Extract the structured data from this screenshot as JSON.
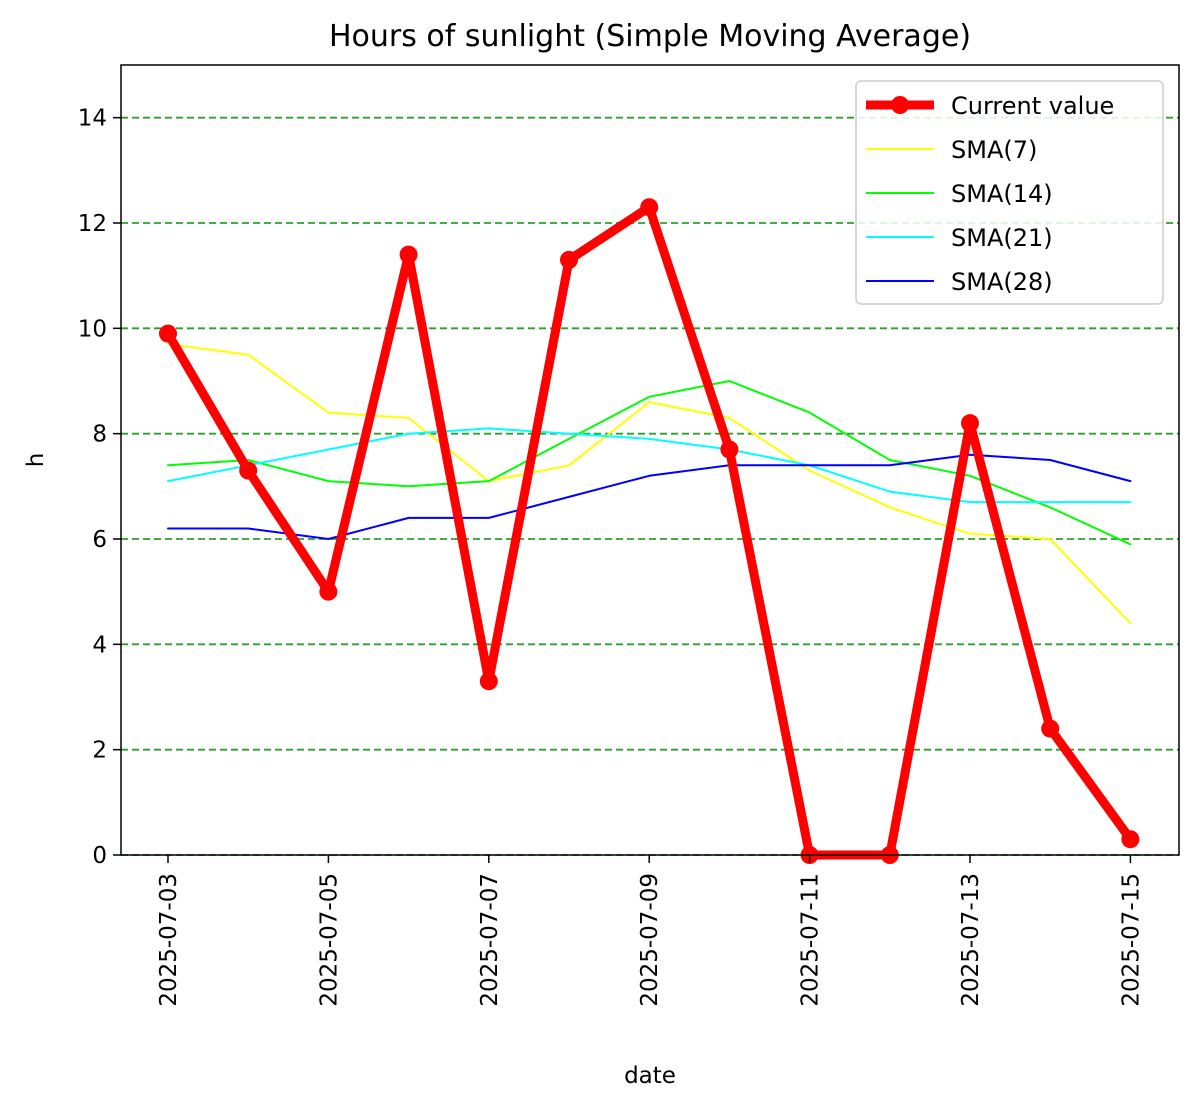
{
  "chart_data": {
    "type": "line",
    "title": "Hours of sunlight (Simple Moving Average)",
    "xlabel": "date",
    "ylabel": "h",
    "ylim": [
      0,
      15
    ],
    "yticks": [
      0,
      2,
      4,
      6,
      8,
      10,
      12,
      14
    ],
    "x": [
      "2025-07-03",
      "2025-07-04",
      "2025-07-05",
      "2025-07-06",
      "2025-07-07",
      "2025-07-08",
      "2025-07-09",
      "2025-07-10",
      "2025-07-11",
      "2025-07-12",
      "2025-07-13",
      "2025-07-14",
      "2025-07-15"
    ],
    "xtick_labels": [
      "2025-07-03",
      "2025-07-05",
      "2025-07-07",
      "2025-07-09",
      "2025-07-11",
      "2025-07-13",
      "2025-07-15"
    ],
    "grid": "horizontal dashed",
    "grid_color": "#2ca02c",
    "legend_position": "top-right",
    "series": [
      {
        "name": "Current value",
        "color": "#ff0000",
        "style": "thick line with markers",
        "values": [
          9.9,
          7.3,
          5.0,
          11.4,
          3.3,
          11.3,
          12.3,
          7.7,
          0.0,
          0.0,
          8.2,
          2.4,
          0.3
        ]
      },
      {
        "name": "SMA(7)",
        "color": "#ffff00",
        "style": "thin line",
        "values": [
          9.7,
          9.5,
          8.4,
          8.3,
          7.1,
          7.4,
          8.6,
          8.3,
          7.3,
          6.6,
          6.1,
          6.0,
          4.4
        ]
      },
      {
        "name": "SMA(14)",
        "color": "#00ff00",
        "style": "thin line",
        "values": [
          7.4,
          7.5,
          7.1,
          7.0,
          7.1,
          7.9,
          8.7,
          9.0,
          8.4,
          7.5,
          7.2,
          6.6,
          5.9
        ]
      },
      {
        "name": "SMA(21)",
        "color": "#00ffff",
        "style": "thin line",
        "values": [
          7.1,
          7.4,
          7.7,
          8.0,
          8.1,
          8.0,
          7.9,
          7.7,
          7.4,
          6.9,
          6.7,
          6.7,
          6.7
        ]
      },
      {
        "name": "SMA(28)",
        "color": "#0000ff",
        "style": "thin line",
        "values": [
          6.2,
          6.2,
          6.0,
          6.4,
          6.4,
          6.8,
          7.2,
          7.4,
          7.4,
          7.4,
          7.6,
          7.5,
          7.1
        ]
      }
    ]
  }
}
